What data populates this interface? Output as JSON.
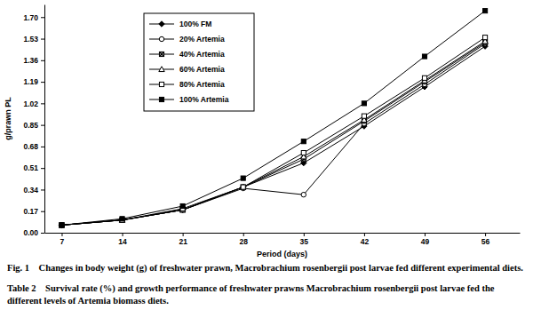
{
  "chart_data": {
    "type": "line",
    "title": "Fig. 1    Changes in body weight (g) of freshwater prawn, Macrobrachium rosenbergii post larvae fed different experimental diets.",
    "annotations": [
      "Table 2    Survival rate (%) and growth performance of freshwater prawns Macrobrachium rosenbergii post larvae fed the different levels of Artemia biomass diets."
    ],
    "x_label": "Period (days)",
    "y_label": "g/prawn PL",
    "x": [
      7,
      14,
      21,
      28,
      35,
      42,
      49,
      56
    ],
    "xlim": [
      5,
      60
    ],
    "xticks": [
      7,
      14,
      21,
      28,
      35,
      42,
      49,
      56
    ],
    "ylim": [
      0,
      1.8
    ],
    "yticks": [
      {
        "value": 0,
        "label": "0.00"
      },
      0.17,
      0.34,
      0.51,
      0.68,
      0.85,
      1.02,
      1.19,
      1.36,
      1.53,
      {
        "value": 1.7,
        "label": "1.70"
      }
    ],
    "grid": false,
    "legend": "upper left",
    "series": [
      {
        "name": "100% FM",
        "color": "#000000",
        "marker": "diamond",
        "line_style": "solid",
        "values": [
          0.06,
          0.1,
          0.18,
          0.36,
          0.55,
          0.84,
          1.15,
          1.47
        ]
      },
      {
        "name": "20% Artemia",
        "color": "#000000",
        "marker": "circle-open",
        "line_style": "solid",
        "values": [
          0.06,
          0.1,
          0.18,
          0.35,
          0.3,
          0.86,
          1.17,
          1.49
        ]
      },
      {
        "name": "40% Artemia",
        "color": "#000000",
        "marker": "square-star",
        "line_style": "solid",
        "values": [
          0.06,
          0.1,
          0.18,
          0.36,
          0.58,
          0.88,
          1.19,
          1.5
        ]
      },
      {
        "name": "60% Artemia",
        "color": "#000000",
        "marker": "triangle-open",
        "line_style": "solid",
        "values": [
          0.06,
          0.1,
          0.18,
          0.36,
          0.6,
          0.89,
          1.2,
          1.51
        ]
      },
      {
        "name": "80% Artemia",
        "color": "#000000",
        "marker": "square-open",
        "line_style": "solid",
        "values": [
          0.06,
          0.1,
          0.19,
          0.36,
          0.63,
          0.92,
          1.22,
          1.54
        ]
      },
      {
        "name": "100% Artemia",
        "color": "#000000",
        "marker": "square",
        "line_style": "solid",
        "values": [
          0.06,
          0.11,
          0.21,
          0.43,
          0.72,
          1.02,
          1.39,
          1.75
        ]
      }
    ]
  }
}
